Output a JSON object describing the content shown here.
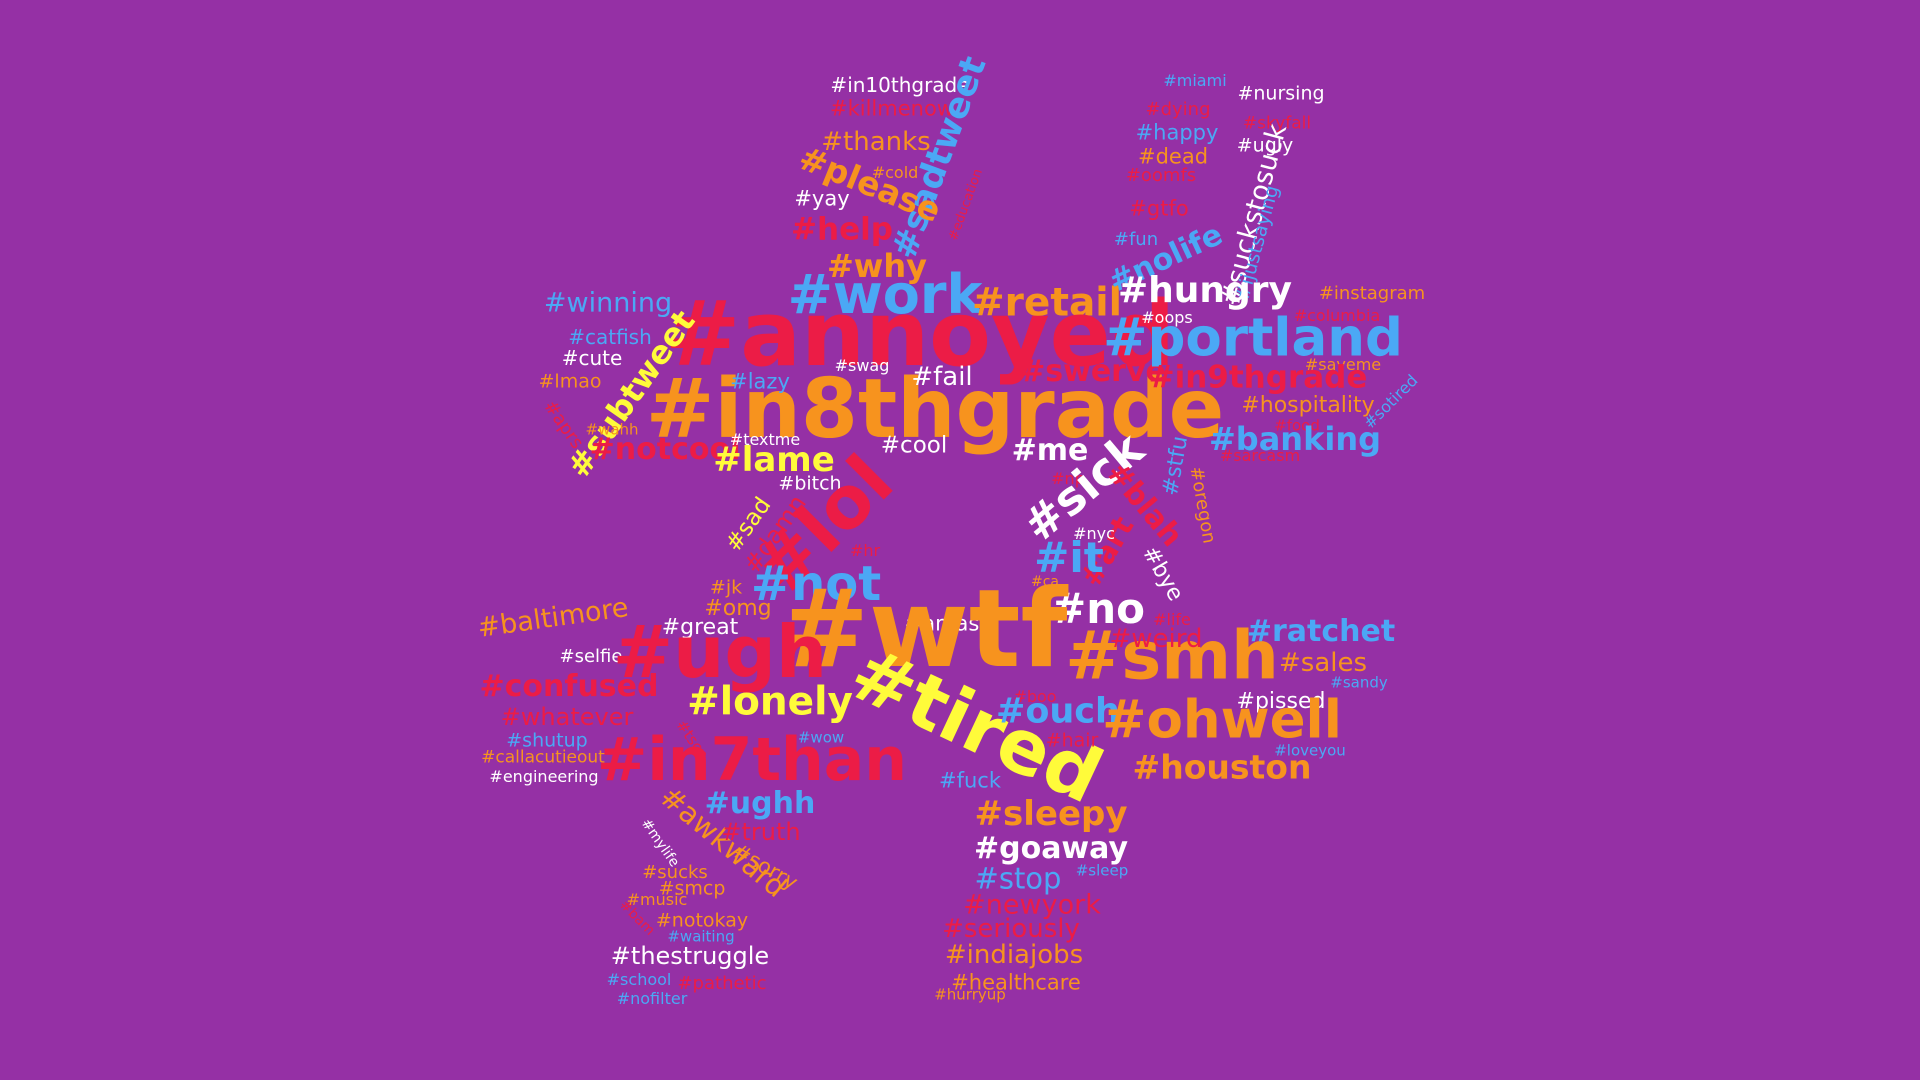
{
  "background": "#9530a5",
  "palette": {
    "red": "#ec1c46",
    "orange": "#f7931e",
    "yellow": "#fffb3a",
    "white": "#ffffff",
    "blue": "#4ba8f5"
  },
  "words": [
    {
      "t": "#in10thgrade",
      "c": "white"
    },
    {
      "t": "#killmenow",
      "c": "red"
    },
    {
      "t": "#sadtweet",
      "c": "blue"
    },
    {
      "t": "#thanks",
      "c": "orange"
    },
    {
      "t": "#please",
      "c": "orange"
    },
    {
      "t": "#cold",
      "c": "orange"
    },
    {
      "t": "#yay",
      "c": "white"
    },
    {
      "t": "#help",
      "c": "red"
    },
    {
      "t": "#education",
      "c": "red"
    },
    {
      "t": "#why",
      "c": "orange"
    },
    {
      "t": "#work",
      "c": "blue"
    },
    {
      "t": "#retail",
      "c": "orange"
    },
    {
      "t": "#annoyed",
      "c": "red"
    },
    {
      "t": "#in8thgrade",
      "c": "orange"
    },
    {
      "t": "#winning",
      "c": "blue"
    },
    {
      "t": "#catfish",
      "c": "blue"
    },
    {
      "t": "#cute",
      "c": "white"
    },
    {
      "t": "#subtweet",
      "c": "yellow"
    },
    {
      "t": "#lmao",
      "c": "orange"
    },
    {
      "t": "#aprs",
      "c": "red"
    },
    {
      "t": "#wahh",
      "c": "orange"
    },
    {
      "t": "#notcool",
      "c": "red"
    },
    {
      "t": "#lazy",
      "c": "blue"
    },
    {
      "t": "#swag",
      "c": "white"
    },
    {
      "t": "#fail",
      "c": "white"
    },
    {
      "t": "#swerve",
      "c": "red"
    },
    {
      "t": "#textme",
      "c": "white"
    },
    {
      "t": "#lame",
      "c": "yellow"
    },
    {
      "t": "#cool",
      "c": "white"
    },
    {
      "t": "#bitch",
      "c": "white"
    },
    {
      "t": "#lol",
      "c": "red"
    },
    {
      "t": "#sad",
      "c": "yellow"
    },
    {
      "t": "#damn",
      "c": "red"
    },
    {
      "t": "#hr",
      "c": "red"
    },
    {
      "t": "#me",
      "c": "white"
    },
    {
      "t": "#np",
      "c": "red"
    },
    {
      "t": "#sick",
      "c": "white"
    },
    {
      "t": "#miami",
      "c": "blue"
    },
    {
      "t": "#nursing",
      "c": "white"
    },
    {
      "t": "#dying",
      "c": "red"
    },
    {
      "t": "#skyfall",
      "c": "red"
    },
    {
      "t": "#happy",
      "c": "blue"
    },
    {
      "t": "#ugly",
      "c": "white"
    },
    {
      "t": "#dead",
      "c": "orange"
    },
    {
      "t": "#oomfs",
      "c": "red"
    },
    {
      "t": "#suckstosuck",
      "c": "white"
    },
    {
      "t": "#gtfo",
      "c": "red"
    },
    {
      "t": "#ijustsaying",
      "c": "blue"
    },
    {
      "t": "#fun",
      "c": "blue"
    },
    {
      "t": "#nolife",
      "c": "blue"
    },
    {
      "t": "#hungry",
      "c": "white"
    },
    {
      "t": "#instagram",
      "c": "orange"
    },
    {
      "t": "#columbia",
      "c": "red"
    },
    {
      "t": "#oops",
      "c": "white"
    },
    {
      "t": "#portland",
      "c": "blue"
    },
    {
      "t": "#saveme",
      "c": "orange"
    },
    {
      "t": "#in9thgrade",
      "c": "red"
    },
    {
      "t": "#hospitality",
      "c": "orange"
    },
    {
      "t": "#sotired",
      "c": "blue"
    },
    {
      "t": "#food",
      "c": "red"
    },
    {
      "t": "#banking",
      "c": "blue"
    },
    {
      "t": "#stfu",
      "c": "blue"
    },
    {
      "t": "#sarcasm",
      "c": "red"
    },
    {
      "t": "#oregon",
      "c": "orange"
    },
    {
      "t": "#blah",
      "c": "red"
    },
    {
      "t": "#art",
      "c": "red"
    },
    {
      "t": "#bye",
      "c": "white"
    },
    {
      "t": "#nyc",
      "c": "white"
    },
    {
      "t": "#it",
      "c": "blue"
    },
    {
      "t": "#ca",
      "c": "orange"
    },
    {
      "t": "#no",
      "c": "white"
    },
    {
      "t": "#life",
      "c": "red"
    },
    {
      "t": "#jk",
      "c": "orange"
    },
    {
      "t": "#omg",
      "c": "orange"
    },
    {
      "t": "#not",
      "c": "blue"
    },
    {
      "t": "#amas",
      "c": "white"
    },
    {
      "t": "#wtf",
      "c": "orange"
    },
    {
      "t": "#great",
      "c": "white"
    },
    {
      "t": "#baltimore",
      "c": "orange"
    },
    {
      "t": "#selfie",
      "c": "white"
    },
    {
      "t": "#ugh",
      "c": "red"
    },
    {
      "t": "#smh",
      "c": "orange"
    },
    {
      "t": "#weird",
      "c": "red"
    },
    {
      "t": "#ratchet",
      "c": "blue"
    },
    {
      "t": "#sales",
      "c": "orange"
    },
    {
      "t": "#sandy",
      "c": "blue"
    },
    {
      "t": "#confused",
      "c": "red"
    },
    {
      "t": "#lonely",
      "c": "yellow"
    },
    {
      "t": "#whatever",
      "c": "red"
    },
    {
      "t": "#tired",
      "c": "yellow"
    },
    {
      "t": "#boo",
      "c": "red"
    },
    {
      "t": "#ouch",
      "c": "blue"
    },
    {
      "t": "#pissed",
      "c": "white"
    },
    {
      "t": "#ohwell",
      "c": "orange"
    },
    {
      "t": "#shutup",
      "c": "blue"
    },
    {
      "t": "#tscp",
      "c": "red"
    },
    {
      "t": "#wow",
      "c": "blue"
    },
    {
      "t": "#hair",
      "c": "red"
    },
    {
      "t": "#loveyou",
      "c": "blue"
    },
    {
      "t": "#callacutieout",
      "c": "orange"
    },
    {
      "t": "#in7than",
      "c": "red"
    },
    {
      "t": "#engineering",
      "c": "white"
    },
    {
      "t": "#fuck",
      "c": "blue"
    },
    {
      "t": "#houston",
      "c": "orange"
    },
    {
      "t": "#awkward",
      "c": "orange"
    },
    {
      "t": "#ughh",
      "c": "blue"
    },
    {
      "t": "#sleepy",
      "c": "orange"
    },
    {
      "t": "#truth",
      "c": "red"
    },
    {
      "t": "#mylife",
      "c": "white"
    },
    {
      "t": "#sorry",
      "c": "orange"
    },
    {
      "t": "#goaway",
      "c": "white"
    },
    {
      "t": "#sucks",
      "c": "orange"
    },
    {
      "t": "#smcp",
      "c": "orange"
    },
    {
      "t": "#stop",
      "c": "blue"
    },
    {
      "t": "#sleep",
      "c": "blue"
    },
    {
      "t": "#music",
      "c": "orange"
    },
    {
      "t": "#notokay",
      "c": "orange"
    },
    {
      "t": "#newyork",
      "c": "red"
    },
    {
      "t": "#bam",
      "c": "red"
    },
    {
      "t": "#waiting",
      "c": "blue"
    },
    {
      "t": "#seriously",
      "c": "red"
    },
    {
      "t": "#thestruggle",
      "c": "white"
    },
    {
      "t": "#indiajobs",
      "c": "orange"
    },
    {
      "t": "#school",
      "c": "blue"
    },
    {
      "t": "#pathetic",
      "c": "red"
    },
    {
      "t": "#healthcare",
      "c": "orange"
    },
    {
      "t": "#nofilter",
      "c": "blue"
    },
    {
      "t": "#hurryup",
      "c": "orange"
    }
  ]
}
